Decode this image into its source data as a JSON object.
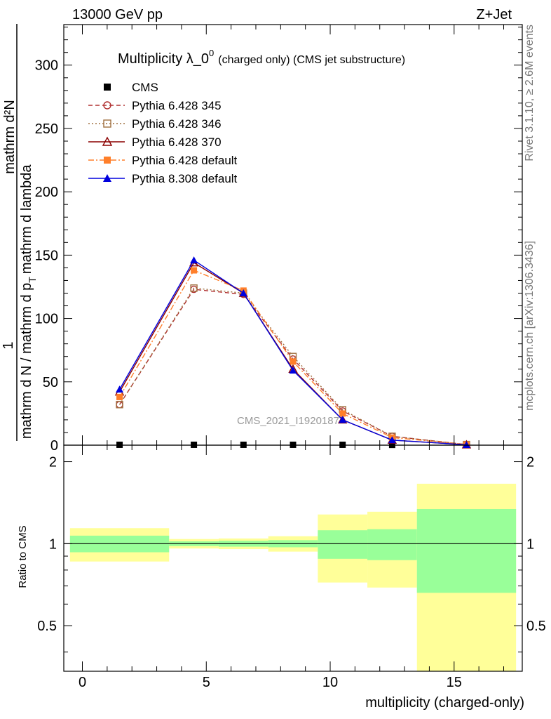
{
  "header": {
    "left": "13000 GeV pp",
    "right": "Z+Jet"
  },
  "side": {
    "rivet": "Rivet 3.1.10, ≥ 2.6M events",
    "mcplots": "mcplots.cern.ch [arXiv:1306.3436]"
  },
  "watermark": "CMS_2021_I1920187",
  "chart_data": [
    {
      "type": "line",
      "title_main": "Multiplicity λ_0",
      "title_sup": "0",
      "title_tail": "(charged only) (CMS jet substructure)",
      "ylabel_top": "1",
      "ylabel_numer": "mathrm d²N",
      "ylabel_denom": "mathrm d N / mathrm d p",
      "ylabel_denom_sub": "T",
      "ylabel_denom_tail": "mathrm d lambda",
      "xlim": [
        -0.75,
        17.75
      ],
      "ylim": [
        0,
        332
      ],
      "y_ticks": [
        0,
        50,
        100,
        150,
        200,
        250,
        300
      ],
      "grid": false,
      "legend_position": "top-left",
      "series": [
        {
          "name": "CMS",
          "color": "#000000",
          "marker": "filled-square",
          "line": "none",
          "x": [
            1.5,
            4.5,
            6.5,
            8.5,
            10.5,
            12.5,
            15.5
          ],
          "y": [
            0.3,
            0.3,
            0.3,
            0.3,
            0.3,
            0.2,
            0.0
          ]
        },
        {
          "name": "Pythia 6.428 345",
          "color": "#b03030",
          "marker": "open-circle",
          "line": "dashed",
          "x": [
            1.5,
            4.5,
            6.5,
            8.5,
            10.5,
            12.5,
            15.5
          ],
          "y": [
            32,
            123,
            119,
            68,
            27,
            7,
            0.5
          ]
        },
        {
          "name": "Pythia 6.428 346",
          "color": "#a07040",
          "marker": "open-square",
          "line": "dotted",
          "x": [
            1.5,
            4.5,
            6.5,
            8.5,
            10.5,
            12.5,
            15.5
          ],
          "y": [
            32,
            124,
            120,
            70,
            28,
            7,
            0.5
          ]
        },
        {
          "name": "Pythia 6.428 370",
          "color": "#8b0000",
          "marker": "open-triangle",
          "line": "solid",
          "x": [
            1.5,
            4.5,
            6.5,
            8.5,
            10.5,
            12.5,
            15.5
          ],
          "y": [
            42,
            144,
            120,
            60,
            20,
            4,
            0.3
          ]
        },
        {
          "name": "Pythia 6.428 default",
          "color": "#ff7f2a",
          "marker": "filled-square",
          "line": "dashdot",
          "x": [
            1.5,
            4.5,
            6.5,
            8.5,
            10.5,
            12.5,
            15.5
          ],
          "y": [
            38,
            138,
            122,
            66,
            25,
            6,
            0.5
          ]
        },
        {
          "name": "Pythia 8.308 default",
          "color": "#0000dd",
          "marker": "filled-triangle",
          "line": "solid",
          "x": [
            1.5,
            4.5,
            6.5,
            8.5,
            10.5,
            12.5,
            15.5
          ],
          "y": [
            44,
            146,
            120,
            59,
            20,
            4,
            0.3
          ]
        }
      ]
    },
    {
      "type": "area",
      "ylabel": "Ratio to CMS",
      "xlabel": "multiplicity (charged-only)",
      "xlim": [
        -0.75,
        17.75
      ],
      "ylim": [
        0.34,
        2.3
      ],
      "y_ticks": [
        0.5,
        1,
        2
      ],
      "x_ticks": [
        0,
        5,
        10,
        15
      ],
      "reference_line": 1,
      "bands": [
        {
          "x0": -0.5,
          "x1": 3.5,
          "stat_lo": 0.93,
          "stat_hi": 1.07,
          "tot_lo": 0.86,
          "tot_hi": 1.14
        },
        {
          "x0": 3.5,
          "x1": 5.5,
          "stat_lo": 0.98,
          "stat_hi": 1.02,
          "tot_lo": 0.96,
          "tot_hi": 1.04
        },
        {
          "x0": 5.5,
          "x1": 7.5,
          "stat_lo": 0.975,
          "stat_hi": 1.025,
          "tot_lo": 0.955,
          "tot_hi": 1.045
        },
        {
          "x0": 7.5,
          "x1": 9.5,
          "stat_lo": 0.97,
          "stat_hi": 1.03,
          "tot_lo": 0.935,
          "tot_hi": 1.065
        },
        {
          "x0": 9.5,
          "x1": 11.5,
          "stat_lo": 0.88,
          "stat_hi": 1.12,
          "tot_lo": 0.72,
          "tot_hi": 1.28
        },
        {
          "x0": 11.5,
          "x1": 13.5,
          "stat_lo": 0.87,
          "stat_hi": 1.13,
          "tot_lo": 0.69,
          "tot_hi": 1.31
        },
        {
          "x0": 13.5,
          "x1": 17.5,
          "stat_lo": 0.66,
          "stat_hi": 1.34,
          "tot_lo": 0.34,
          "tot_hi": 1.66
        }
      ],
      "band_colors": {
        "stat": "#99ff99",
        "total": "#ffff99"
      }
    }
  ]
}
